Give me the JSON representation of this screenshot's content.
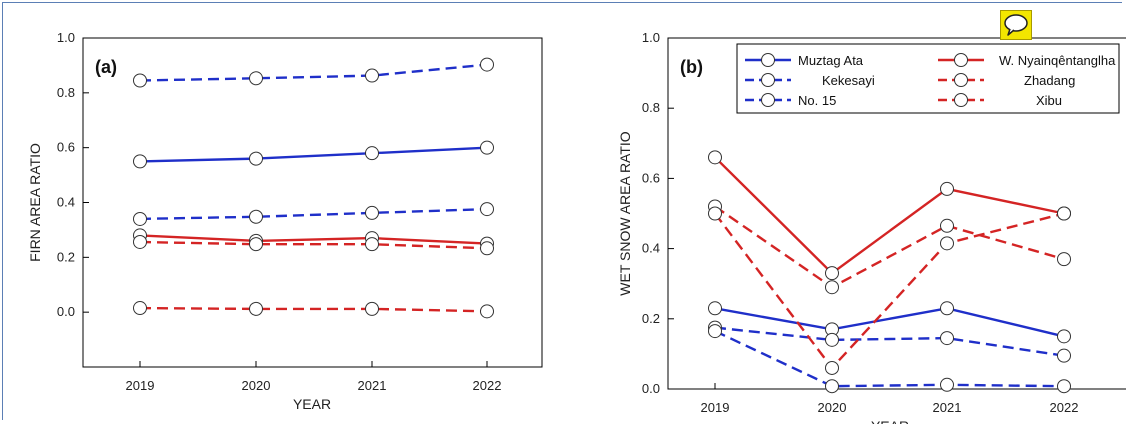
{
  "chart_data": [
    {
      "type": "line",
      "panel_label": "(a)",
      "xlabel": "YEAR",
      "ylabel": "FIRN AREA RATIO",
      "x": [
        "2019",
        "2020",
        "2021",
        "2022"
      ],
      "ylim": [
        -0.2,
        1.0
      ],
      "yticks": [
        "0.0",
        "0.2",
        "0.4",
        "0.6",
        "0.8",
        "1.0"
      ],
      "series": [
        {
          "key": "muztag-ata",
          "color": "#1f2fc9",
          "dash": "solid",
          "values": [
            0.55,
            0.56,
            0.58,
            0.6
          ]
        },
        {
          "key": "kekesayi",
          "color": "#1f2fc9",
          "dash": "dashed",
          "values": [
            0.34,
            0.348,
            0.362,
            0.376
          ]
        },
        {
          "key": "no-15",
          "color": "#1f2fc9",
          "dash": "dashed",
          "values": [
            0.845,
            0.853,
            0.863,
            0.903
          ]
        },
        {
          "key": "w-nyainqentanglha",
          "color": "#d42424",
          "dash": "solid",
          "values": [
            0.28,
            0.26,
            0.27,
            0.25
          ]
        },
        {
          "key": "zhadang",
          "color": "#d42424",
          "dash": "dashed",
          "values": [
            0.256,
            0.248,
            0.248,
            0.233
          ]
        },
        {
          "key": "xibu",
          "color": "#d42424",
          "dash": "dashed",
          "values": [
            0.015,
            0.012,
            0.012,
            0.003
          ]
        }
      ]
    },
    {
      "type": "line",
      "panel_label": "(b)",
      "xlabel": "YEAR",
      "ylabel": "WET SNOW AREA RATIO",
      "x": [
        "2019",
        "2020",
        "2021",
        "2022"
      ],
      "ylim": [
        0.0,
        1.0
      ],
      "yticks": [
        "0.0",
        "0.2",
        "0.4",
        "0.6",
        "0.8",
        "1.0"
      ],
      "legend_position": "top-right",
      "series": [
        {
          "key": "muztag-ata",
          "name": "Muztag Ata",
          "color": "#1f2fc9",
          "dash": "solid",
          "values": [
            0.23,
            0.17,
            0.23,
            0.15
          ]
        },
        {
          "key": "kekesayi",
          "name": "Kekesayi",
          "color": "#1f2fc9",
          "dash": "dashed",
          "values": [
            0.175,
            0.14,
            0.145,
            0.095
          ]
        },
        {
          "key": "no-15",
          "name": "No. 15",
          "color": "#1f2fc9",
          "dash": "dashed",
          "values": [
            0.165,
            0.008,
            0.012,
            0.008
          ]
        },
        {
          "key": "w-nyainqentanglha",
          "name": "W. Nyainqêntanglha",
          "color": "#d42424",
          "dash": "solid",
          "values": [
            0.66,
            0.33,
            0.57,
            0.5
          ]
        },
        {
          "key": "zhadang",
          "name": "Zhadang",
          "color": "#d42424",
          "dash": "dashed",
          "values": [
            0.52,
            0.29,
            0.465,
            0.37
          ]
        },
        {
          "key": "xibu",
          "name": "Xibu",
          "color": "#d42424",
          "dash": "dashed",
          "values": [
            0.5,
            0.06,
            0.415,
            0.5
          ]
        }
      ]
    }
  ]
}
